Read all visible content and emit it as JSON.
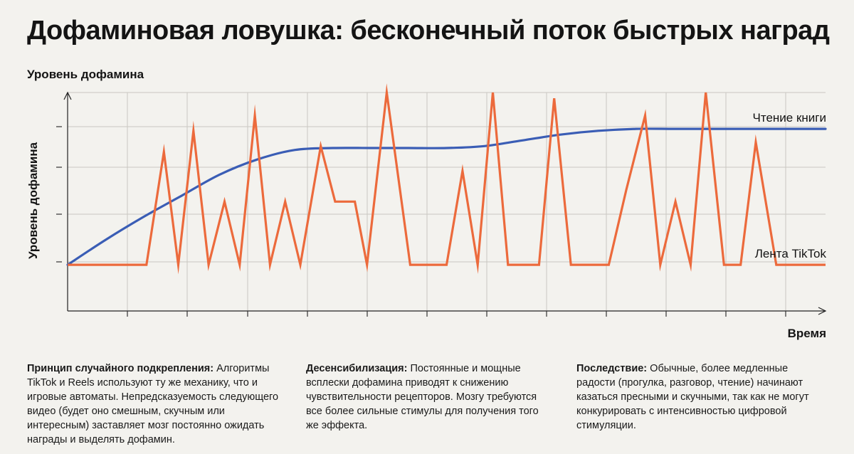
{
  "title": "Дофаминовая ловушка: бесконечный поток быстрых наград",
  "chart_data": {
    "type": "line",
    "top_label": "Уровень дофамина",
    "ylabel": "Уровень дофамина",
    "xlabel": "Время",
    "xlim": [
      0,
      100
    ],
    "ylim": [
      0,
      100
    ],
    "grid": true,
    "series": [
      {
        "name": "Чтение книги",
        "label": "Чтение книги",
        "color": "#3a5db5",
        "x": [
          0,
          5,
          10,
          15,
          20,
          25,
          30,
          35,
          40,
          45,
          50,
          55,
          60,
          65,
          70,
          75,
          80,
          85,
          90,
          95,
          100
        ],
        "y": [
          10,
          23,
          35,
          46,
          57,
          65,
          70,
          71,
          71,
          71,
          71,
          72,
          75,
          78,
          80,
          81,
          81,
          81,
          81,
          81,
          81
        ]
      },
      {
        "name": "Лента TikTok",
        "label": "Лента TikTok",
        "color": "#ec6a3c",
        "x": [
          0,
          10.4,
          12.7,
          14.6,
          16.6,
          18.6,
          20.7,
          22.7,
          24.7,
          26.7,
          28.7,
          30.7,
          33.4,
          35.3,
          37.9,
          39.5,
          42.1,
          45.2,
          47.9,
          50,
          52.1,
          54.1,
          56.1,
          58.1,
          60.1,
          62.2,
          64.2,
          66.4,
          68.9,
          71.4,
          73.7,
          76.2,
          78.2,
          80.2,
          82.2,
          84.2,
          86.6,
          88.8,
          90.8,
          93.5,
          100
        ],
        "y": [
          10,
          10,
          69,
          10,
          80,
          10,
          43,
          10,
          88,
          10,
          43,
          10,
          72,
          43,
          43,
          10,
          100,
          10,
          10,
          10,
          59,
          10,
          100,
          10,
          10,
          10,
          97,
          10,
          10,
          10,
          49,
          88,
          10,
          43,
          10,
          100,
          10,
          10,
          74,
          10,
          10
        ]
      }
    ]
  },
  "notes": [
    {
      "heading": "Принцип случайного подкрепления:",
      "text": " Алгоритмы TikTok и Reels используют ту же механику, что и игровые автоматы. Непредсказуемость следующего видео (будет оно смешным, скучным или интересным) заставляет мозг постоянно ожидать награды и выделять дофамин."
    },
    {
      "heading": "Десенсибилизация:",
      "text": " Постоянные и мощные всплески дофамина приводят к снижению чувствительности рецепторов. Мозгу требуются все более сильные стимулы для получения того же эффекта."
    },
    {
      "heading": "Последствие:",
      "text": " Обычные, более медленные радости (прогулка, разговор, чтение) начинают казаться пресными и скучными, так как не могут конкурировать с интенсивностью цифровой стимуляции."
    }
  ]
}
